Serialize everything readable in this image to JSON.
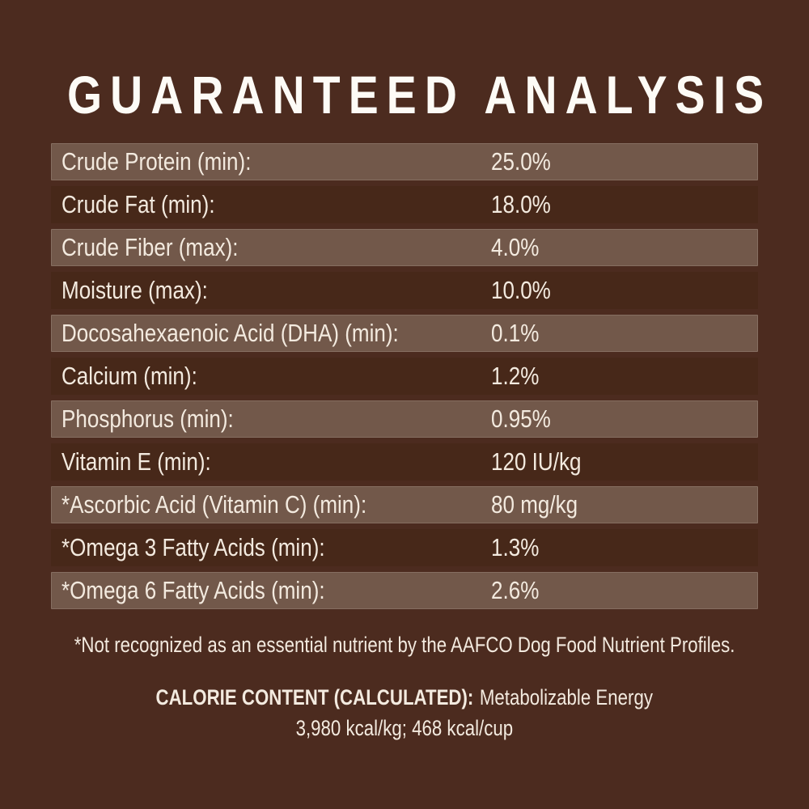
{
  "title": "GUARANTEED ANALYSIS",
  "table": {
    "rows": [
      {
        "label": "Crude Protein (min):",
        "value": "25.0%"
      },
      {
        "label": "Crude Fat (min):",
        "value": "18.0%"
      },
      {
        "label": "Crude Fiber (max):",
        "value": "4.0%"
      },
      {
        "label": "Moisture (max):",
        "value": "10.0%"
      },
      {
        "label": "Docosahexaenoic Acid (DHA) (min):",
        "value": "0.1%"
      },
      {
        "label": "Calcium (min):",
        "value": "1.2%"
      },
      {
        "label": "Phosphorus (min):",
        "value": "0.95%"
      },
      {
        "label": "Vitamin E (min):",
        "value": "120 IU/kg"
      },
      {
        "label": "*Ascorbic Acid (Vitamin C) (min):",
        "value": "80 mg/kg"
      },
      {
        "label": "*Omega 3 Fatty Acids (min):",
        "value": "1.3%"
      },
      {
        "label": "*Omega 6 Fatty Acids (min):",
        "value": "2.6%"
      }
    ]
  },
  "footnote": "*Not recognized as an essential nutrient by the AAFCO Dog Food Nutrient Profiles.",
  "calorie": {
    "heading": "CALORIE CONTENT (CALCULATED):",
    "energy_label": "Metabolizable Energy",
    "values_line": "3,980 kcal/kg; 468 kcal/cup"
  },
  "colors": {
    "background": "#4c2b1f",
    "row-stripe": "#72584a",
    "row-dark": "#472819",
    "text-cream": "#f3eadf",
    "title-white": "#fdfbf6"
  }
}
